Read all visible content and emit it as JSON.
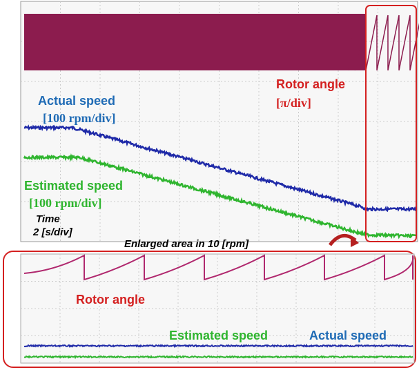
{
  "top": {
    "actual_speed": "Actual speed",
    "actual_scale": "[100 rpm/div]",
    "rotor_angle": "Rotor angle",
    "rotor_scale": "[π/div]",
    "estimated_speed": "Estimated speed",
    "estimated_scale": "[100 rpm/div]",
    "time": "Time",
    "time_scale": "2 [s/div]"
  },
  "enlarged": {
    "title": "Enlarged area in 10 [rpm]",
    "rotor_angle": "Rotor angle",
    "estimated_speed": "Estimated speed",
    "actual_speed": "Actual speed"
  }
}
